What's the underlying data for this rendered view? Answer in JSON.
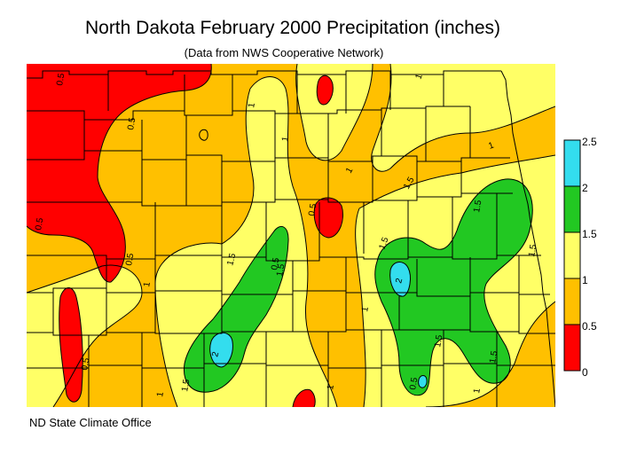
{
  "title": "North Dakota February 2000 Precipitation (inches)",
  "subtitle": "(Data from NWS Cooperative Network)",
  "credit": "ND State Climate Office",
  "legend": {
    "bins": [
      {
        "range": [
          0,
          0.5
        ],
        "color": "#ff0000"
      },
      {
        "range": [
          0.5,
          1
        ],
        "color": "#ffc000"
      },
      {
        "range": [
          1,
          1.5
        ],
        "color": "#ffff66"
      },
      {
        "range": [
          1.5,
          2
        ],
        "color": "#22c822"
      },
      {
        "range": [
          2,
          2.5
        ],
        "color": "#33ddee"
      }
    ],
    "tick_labels": [
      "0",
      "0.5",
      "1",
      "1.5",
      "2",
      "2.5"
    ]
  },
  "contour_labels": [
    "0.5",
    "0.5",
    "0.5",
    "0.5",
    "0.5",
    "0.5",
    "0.5",
    "1",
    "1",
    "1",
    "1",
    "1",
    "1",
    "1",
    "1",
    "1.5",
    "1.5",
    "1.5",
    "1.5",
    "1.5",
    "1.5",
    "1.5",
    "1.5",
    "1.5",
    "2",
    "2",
    "0.5",
    "1",
    "1"
  ]
}
